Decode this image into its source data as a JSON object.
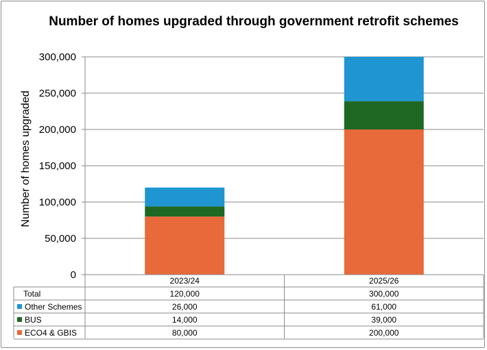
{
  "chart_data": {
    "type": "bar",
    "stacked": true,
    "title": "Number of homes upgraded through government retrofit schemes",
    "xlabel": "",
    "ylabel": "Number of homes upgraded",
    "ylim": [
      0,
      300000
    ],
    "yticks": [
      0,
      50000,
      100000,
      150000,
      200000,
      250000,
      300000
    ],
    "ytick_labels": [
      "0",
      "50,000",
      "100,000",
      "150,000",
      "200,000",
      "250,000",
      "300,000"
    ],
    "categories": [
      "2023/24",
      "2025/26"
    ],
    "grid": true,
    "legend": "data-table",
    "series": [
      {
        "name": "ECO4 & GBIS",
        "values": [
          80000,
          200000
        ],
        "labels": [
          "80,000",
          "200,000"
        ],
        "color": "#e8693a"
      },
      {
        "name": "BUS",
        "values": [
          14000,
          39000
        ],
        "labels": [
          "14,000",
          "39,000"
        ],
        "color": "#1e6823"
      },
      {
        "name": "Other Schemes",
        "values": [
          26000,
          61000
        ],
        "labels": [
          "26,000",
          "61,000"
        ],
        "color": "#1f96d2"
      }
    ],
    "total": {
      "name": "Total",
      "values": [
        120000,
        300000
      ],
      "labels": [
        "120,000",
        "300,000"
      ]
    }
  }
}
